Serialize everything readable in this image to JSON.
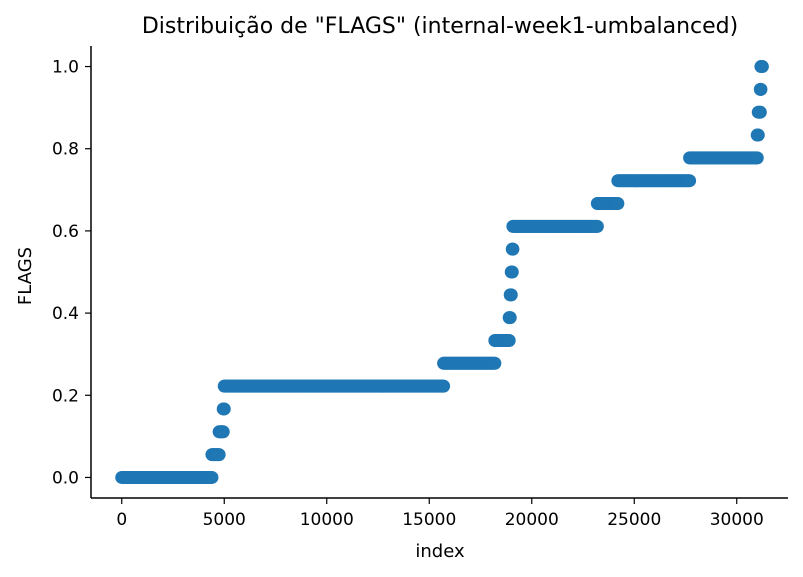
{
  "chart_data": {
    "type": "scatter",
    "title": "Distribuição de \"FLAGS\" (internal-week1-umbalanced)",
    "xlabel": "index",
    "ylabel": "FLAGS",
    "xlim": [
      -1500,
      32500
    ],
    "ylim": [
      -0.05,
      1.05
    ],
    "x_ticks": [
      0,
      5000,
      10000,
      15000,
      20000,
      25000,
      30000
    ],
    "x_tick_labels": [
      "0",
      "5000",
      "10000",
      "15000",
      "20000",
      "25000",
      "30000"
    ],
    "y_ticks": [
      0.0,
      0.2,
      0.4,
      0.6,
      0.8,
      1.0
    ],
    "y_tick_labels": [
      "0.0",
      "0.2",
      "0.4",
      "0.6",
      "0.8",
      "1.0"
    ],
    "grid": false,
    "marker_color": "#1f77b4",
    "sorted_segments": [
      {
        "y": 0.0,
        "x_start": 0,
        "x_end": 4400
      },
      {
        "y": 0.0556,
        "x_start": 4400,
        "x_end": 4750
      },
      {
        "y": 0.1111,
        "x_start": 4750,
        "x_end": 4950
      },
      {
        "y": 0.1667,
        "x_start": 4950,
        "x_end": 5000
      },
      {
        "y": 0.2222,
        "x_start": 5000,
        "x_end": 15700
      },
      {
        "y": 0.2778,
        "x_start": 15700,
        "x_end": 18200
      },
      {
        "y": 0.3333,
        "x_start": 18200,
        "x_end": 18900
      },
      {
        "y": 0.3889,
        "x_start": 18900,
        "x_end": 18950
      },
      {
        "y": 0.4444,
        "x_start": 18950,
        "x_end": 19000
      },
      {
        "y": 0.5,
        "x_start": 19000,
        "x_end": 19050
      },
      {
        "y": 0.5556,
        "x_start": 19050,
        "x_end": 19080
      },
      {
        "y": 0.6111,
        "x_start": 19080,
        "x_end": 23200
      },
      {
        "y": 0.6667,
        "x_start": 23200,
        "x_end": 24200
      },
      {
        "y": 0.7222,
        "x_start": 24200,
        "x_end": 27700
      },
      {
        "y": 0.7778,
        "x_start": 27700,
        "x_end": 31000
      },
      {
        "y": 0.8333,
        "x_start": 31000,
        "x_end": 31050
      },
      {
        "y": 0.8889,
        "x_start": 31050,
        "x_end": 31150
      },
      {
        "y": 0.9444,
        "x_start": 31150,
        "x_end": 31180
      },
      {
        "y": 1.0,
        "x_start": 31180,
        "x_end": 31250
      }
    ]
  }
}
